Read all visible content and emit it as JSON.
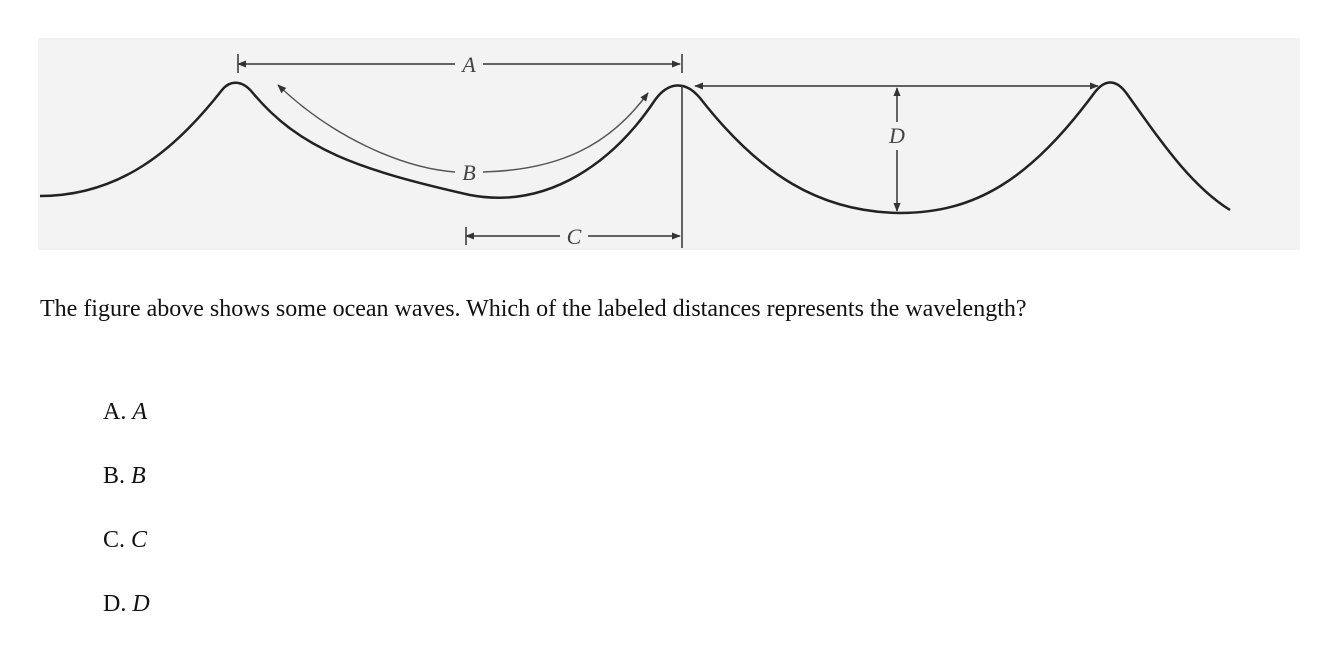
{
  "figure": {
    "labels": {
      "a": "A",
      "b": "B",
      "c": "C",
      "d": "D"
    }
  },
  "question": {
    "text": "The figure above shows some ocean waves. Which of the labeled distances represents the wavelength?"
  },
  "choices": [
    {
      "letter": "A.",
      "value": "A"
    },
    {
      "letter": "B.",
      "value": "B"
    },
    {
      "letter": "C.",
      "value": "C"
    },
    {
      "letter": "D.",
      "value": "D"
    }
  ]
}
